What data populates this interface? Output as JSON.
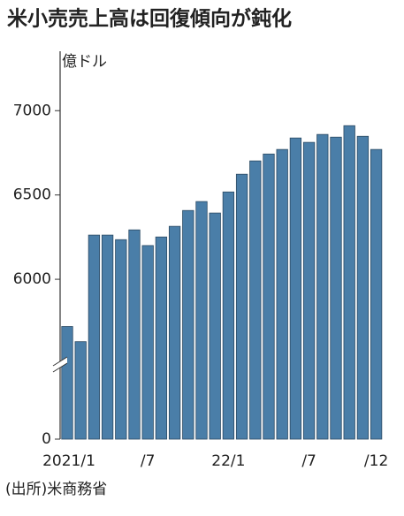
{
  "chart_data": {
    "type": "bar",
    "title": "米小売売上高は回復傾向が鈍化",
    "unit_label": "億ドル",
    "source": "(出所)米商務省",
    "categories": [
      "2021/1",
      null,
      null,
      null,
      null,
      null,
      "/7",
      null,
      null,
      null,
      null,
      null,
      "22/1",
      null,
      null,
      null,
      null,
      null,
      "/7",
      null,
      null,
      null,
      null,
      "/12"
    ],
    "values": [
      5720,
      5630,
      6262,
      6262,
      6235,
      6293,
      6200,
      6251,
      6314,
      6408,
      6461,
      6393,
      6518,
      6623,
      6702,
      6743,
      6770,
      6838,
      6812,
      6859,
      6843,
      6911,
      6848,
      6770
    ],
    "color": "#4a7ea8",
    "ylim": [
      0,
      7300
    ],
    "yticks": [
      0,
      6000,
      6500,
      7000
    ],
    "axis_break": 5500,
    "grid": false
  }
}
